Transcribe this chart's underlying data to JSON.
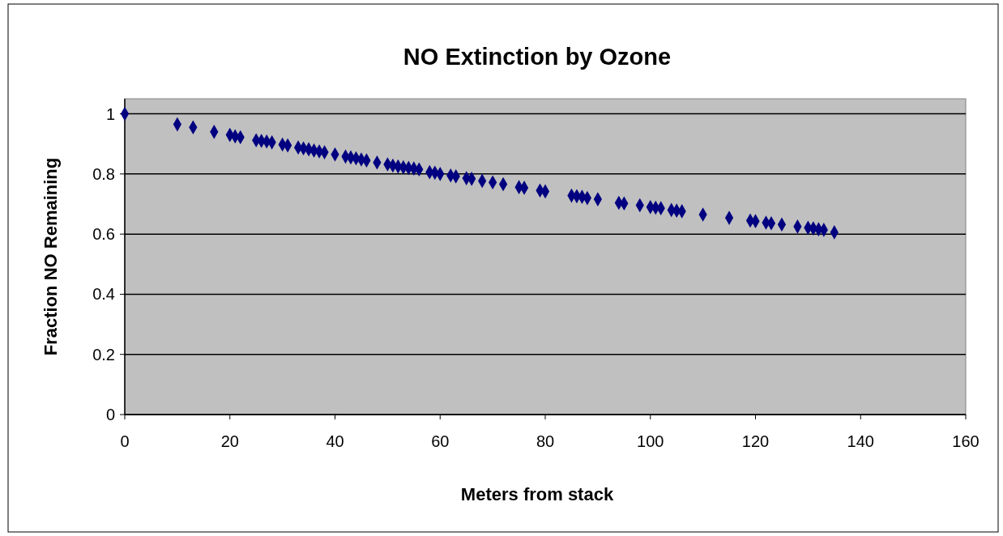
{
  "chart_data": {
    "type": "scatter",
    "title": "NO Extinction by Ozone",
    "xlabel": "Meters from stack",
    "ylabel": "Fraction NO Remaining",
    "x": [
      0,
      10,
      13,
      17,
      20,
      21,
      22,
      25,
      26,
      27,
      28,
      30,
      31,
      33,
      34,
      35,
      36,
      37,
      38,
      40,
      42,
      43,
      44,
      45,
      46,
      48,
      50,
      51,
      52,
      53,
      54,
      55,
      56,
      58,
      59,
      60,
      62,
      63,
      65,
      66,
      68,
      70,
      72,
      75,
      76,
      79,
      80,
      85,
      86,
      87,
      88,
      90,
      94,
      95,
      98,
      100,
      101,
      102,
      104,
      105,
      106,
      110,
      115,
      119,
      120,
      122,
      123,
      125,
      128,
      130,
      131,
      132,
      133,
      135
    ],
    "series": [
      {
        "color": "#000080",
        "values": [
          1.0,
          0.965,
          0.955,
          0.94,
          0.93,
          0.925,
          0.922,
          0.912,
          0.91,
          0.908,
          0.905,
          0.898,
          0.895,
          0.888,
          0.885,
          0.882,
          0.878,
          0.875,
          0.872,
          0.865,
          0.858,
          0.855,
          0.852,
          0.848,
          0.845,
          0.838,
          0.832,
          0.828,
          0.825,
          0.822,
          0.82,
          0.818,
          0.815,
          0.806,
          0.804,
          0.8,
          0.795,
          0.792,
          0.786,
          0.784,
          0.777,
          0.772,
          0.766,
          0.756,
          0.754,
          0.745,
          0.742,
          0.728,
          0.726,
          0.724,
          0.72,
          0.716,
          0.704,
          0.702,
          0.696,
          0.69,
          0.688,
          0.686,
          0.68,
          0.678,
          0.676,
          0.665,
          0.654,
          0.645,
          0.643,
          0.638,
          0.636,
          0.632,
          0.625,
          0.621,
          0.619,
          0.616,
          0.614,
          0.606
        ]
      }
    ],
    "xlim": [
      0,
      160
    ],
    "xticks": [
      0,
      20,
      40,
      60,
      80,
      100,
      120,
      140,
      160
    ],
    "ylim": [
      0,
      1.05
    ],
    "yticks": [
      0,
      0.2,
      0.4,
      0.6,
      0.8,
      1
    ],
    "grid": "y",
    "marker": "diamond"
  }
}
